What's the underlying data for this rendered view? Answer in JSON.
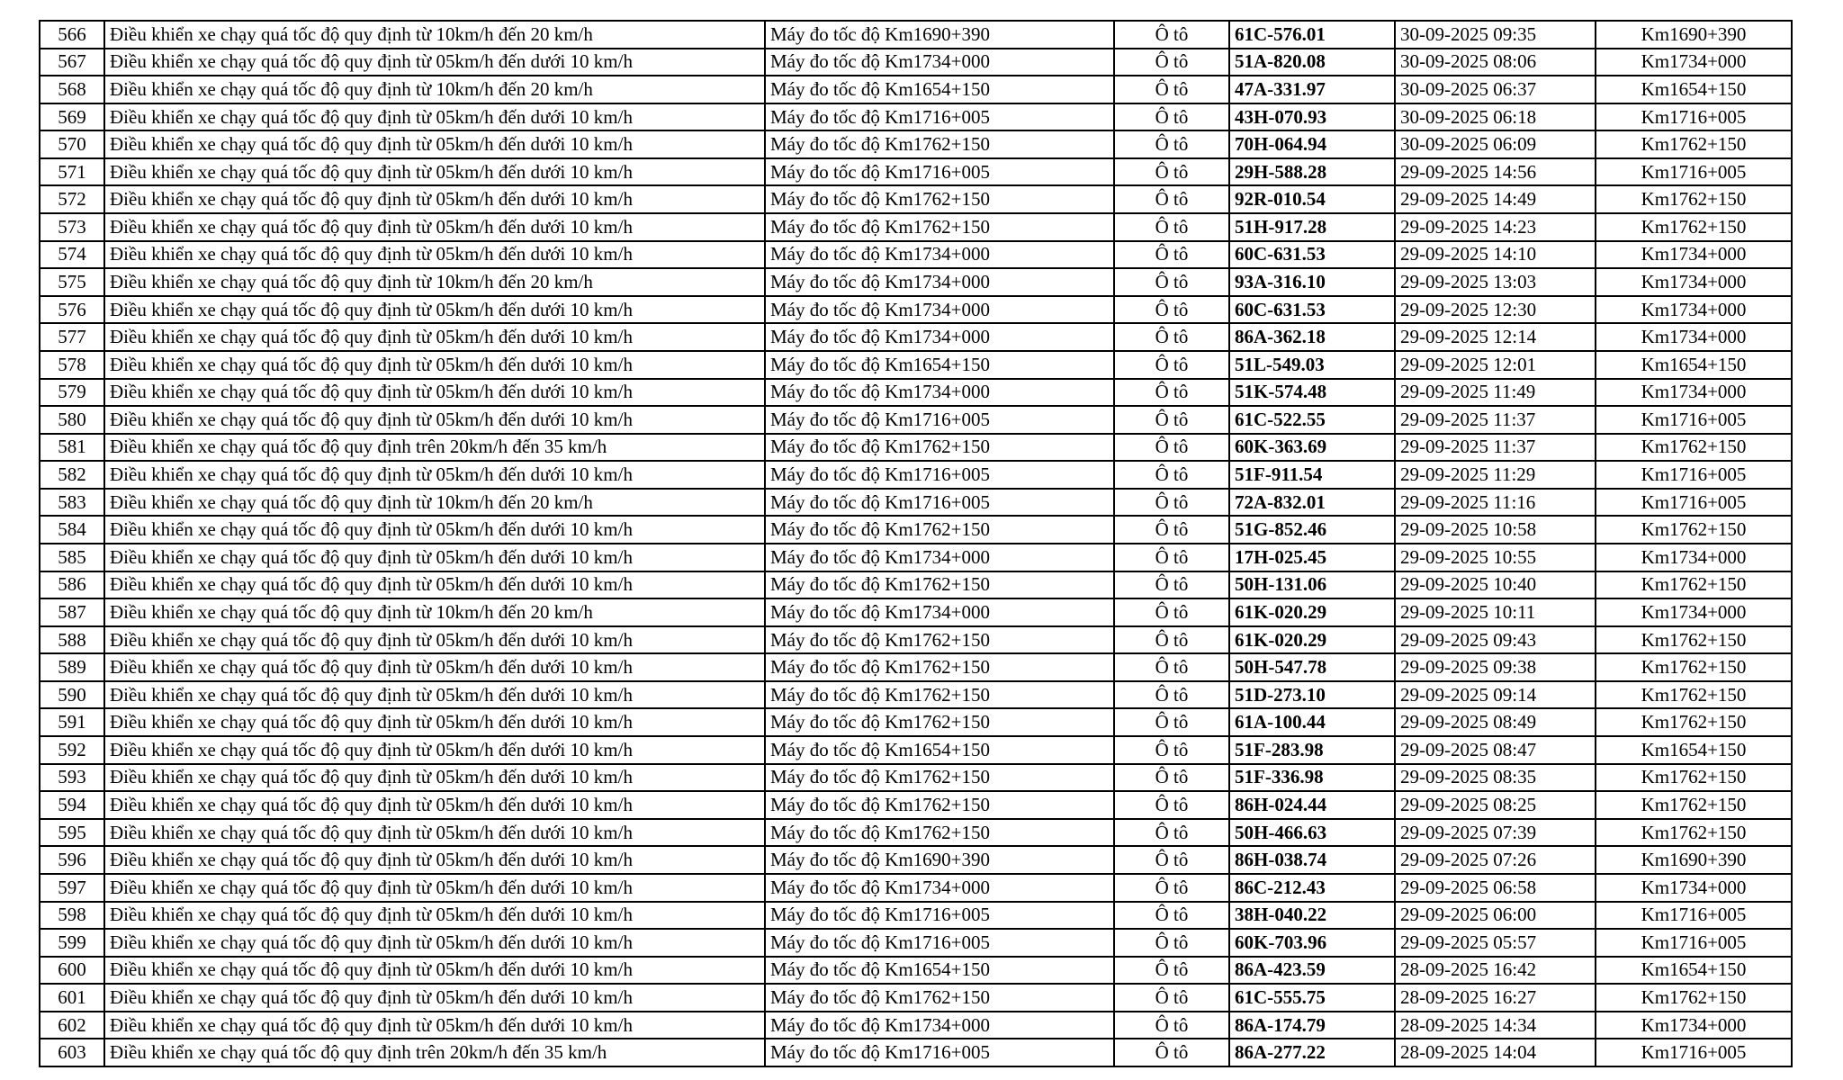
{
  "page": {
    "background_color": "#ffffff",
    "text_color": "#000000",
    "border_color": "#000000"
  },
  "table": {
    "column_keys": [
      "stt",
      "violation",
      "device",
      "vehicle",
      "plate",
      "datetime",
      "location"
    ],
    "rows": [
      {
        "stt": "566",
        "violation": "Điều khiển xe chạy quá tốc độ quy định từ 10km/h đến 20 km/h",
        "device": "Máy đo tốc độ Km1690+390",
        "vehicle": "Ô tô",
        "plate": "61C-576.01",
        "datetime": "30-09-2025 09:35",
        "location": "Km1690+390"
      },
      {
        "stt": "567",
        "violation": "Điều khiển xe chạy quá tốc độ quy định từ 05km/h đến dưới 10 km/h",
        "device": "Máy đo tốc độ Km1734+000",
        "vehicle": "Ô tô",
        "plate": "51A-820.08",
        "datetime": "30-09-2025 08:06",
        "location": "Km1734+000"
      },
      {
        "stt": "568",
        "violation": "Điều khiển xe chạy quá tốc độ quy định từ 10km/h đến 20 km/h",
        "device": "Máy đo tốc độ Km1654+150",
        "vehicle": "Ô tô",
        "plate": "47A-331.97",
        "datetime": "30-09-2025 06:37",
        "location": "Km1654+150"
      },
      {
        "stt": "569",
        "violation": "Điều khiển xe chạy quá tốc độ quy định từ 05km/h đến dưới 10 km/h",
        "device": "Máy đo tốc độ Km1716+005",
        "vehicle": "Ô tô",
        "plate": "43H-070.93",
        "datetime": "30-09-2025 06:18",
        "location": "Km1716+005"
      },
      {
        "stt": "570",
        "violation": "Điều khiển xe chạy quá tốc độ quy định từ 05km/h đến dưới 10 km/h",
        "device": "Máy đo tốc độ Km1762+150",
        "vehicle": "Ô tô",
        "plate": "70H-064.94",
        "datetime": "30-09-2025 06:09",
        "location": "Km1762+150"
      },
      {
        "stt": "571",
        "violation": "Điều khiển xe chạy quá tốc độ quy định từ 05km/h đến dưới 10 km/h",
        "device": "Máy đo tốc độ Km1716+005",
        "vehicle": "Ô tô",
        "plate": "29H-588.28",
        "datetime": "29-09-2025 14:56",
        "location": "Km1716+005"
      },
      {
        "stt": "572",
        "violation": "Điều khiển xe chạy quá tốc độ quy định từ 05km/h đến dưới 10 km/h",
        "device": "Máy đo tốc độ Km1762+150",
        "vehicle": "Ô tô",
        "plate": "92R-010.54",
        "datetime": "29-09-2025 14:49",
        "location": "Km1762+150"
      },
      {
        "stt": "573",
        "violation": "Điều khiển xe chạy quá tốc độ quy định từ 05km/h đến dưới 10 km/h",
        "device": "Máy đo tốc độ Km1762+150",
        "vehicle": "Ô tô",
        "plate": "51H-917.28",
        "datetime": "29-09-2025 14:23",
        "location": "Km1762+150"
      },
      {
        "stt": "574",
        "violation": "Điều khiển xe chạy quá tốc độ quy định từ 05km/h đến dưới 10 km/h",
        "device": "Máy đo tốc độ Km1734+000",
        "vehicle": "Ô tô",
        "plate": "60C-631.53",
        "datetime": "29-09-2025 14:10",
        "location": "Km1734+000"
      },
      {
        "stt": "575",
        "violation": "Điều khiển xe chạy quá tốc độ quy định từ 10km/h đến 20 km/h",
        "device": "Máy đo tốc độ Km1734+000",
        "vehicle": "Ô tô",
        "plate": "93A-316.10",
        "datetime": "29-09-2025 13:03",
        "location": "Km1734+000"
      },
      {
        "stt": "576",
        "violation": "Điều khiển xe chạy quá tốc độ quy định từ 05km/h đến dưới 10 km/h",
        "device": "Máy đo tốc độ Km1734+000",
        "vehicle": "Ô tô",
        "plate": "60C-631.53",
        "datetime": "29-09-2025 12:30",
        "location": "Km1734+000"
      },
      {
        "stt": "577",
        "violation": "Điều khiển xe chạy quá tốc độ quy định từ 05km/h đến dưới 10 km/h",
        "device": "Máy đo tốc độ Km1734+000",
        "vehicle": "Ô tô",
        "plate": "86A-362.18",
        "datetime": "29-09-2025 12:14",
        "location": "Km1734+000"
      },
      {
        "stt": "578",
        "violation": "Điều khiển xe chạy quá tốc độ quy định từ 05km/h đến dưới 10 km/h",
        "device": "Máy đo tốc độ Km1654+150",
        "vehicle": "Ô tô",
        "plate": "51L-549.03",
        "datetime": "29-09-2025 12:01",
        "location": "Km1654+150"
      },
      {
        "stt": "579",
        "violation": "Điều khiển xe chạy quá tốc độ quy định từ 05km/h đến dưới 10 km/h",
        "device": "Máy đo tốc độ Km1734+000",
        "vehicle": "Ô tô",
        "plate": "51K-574.48",
        "datetime": "29-09-2025 11:49",
        "location": "Km1734+000"
      },
      {
        "stt": "580",
        "violation": "Điều khiển xe chạy quá tốc độ quy định từ 05km/h đến dưới 10 km/h",
        "device": "Máy đo tốc độ Km1716+005",
        "vehicle": "Ô tô",
        "plate": "61C-522.55",
        "datetime": "29-09-2025 11:37",
        "location": "Km1716+005"
      },
      {
        "stt": "581",
        "violation": "Điều khiển xe chạy quá tốc độ quy định trên 20km/h đến 35 km/h",
        "device": "Máy đo tốc độ Km1762+150",
        "vehicle": "Ô tô",
        "plate": "60K-363.69",
        "datetime": "29-09-2025 11:37",
        "location": "Km1762+150"
      },
      {
        "stt": "582",
        "violation": "Điều khiển xe chạy quá tốc độ quy định từ 05km/h đến dưới 10 km/h",
        "device": "Máy đo tốc độ Km1716+005",
        "vehicle": "Ô tô",
        "plate": "51F-911.54",
        "datetime": "29-09-2025 11:29",
        "location": "Km1716+005"
      },
      {
        "stt": "583",
        "violation": "Điều khiển xe chạy quá tốc độ quy định từ 10km/h đến 20 km/h",
        "device": "Máy đo tốc độ Km1716+005",
        "vehicle": "Ô tô",
        "plate": "72A-832.01",
        "datetime": "29-09-2025 11:16",
        "location": "Km1716+005"
      },
      {
        "stt": "584",
        "violation": "Điều khiển xe chạy quá tốc độ quy định từ 05km/h đến dưới 10 km/h",
        "device": "Máy đo tốc độ Km1762+150",
        "vehicle": "Ô tô",
        "plate": "51G-852.46",
        "datetime": "29-09-2025 10:58",
        "location": "Km1762+150"
      },
      {
        "stt": "585",
        "violation": "Điều khiển xe chạy quá tốc độ quy định từ 05km/h đến dưới 10 km/h",
        "device": "Máy đo tốc độ Km1734+000",
        "vehicle": "Ô tô",
        "plate": "17H-025.45",
        "datetime": "29-09-2025 10:55",
        "location": "Km1734+000"
      },
      {
        "stt": "586",
        "violation": "Điều khiển xe chạy quá tốc độ quy định từ 05km/h đến dưới 10 km/h",
        "device": "Máy đo tốc độ Km1762+150",
        "vehicle": "Ô tô",
        "plate": "50H-131.06",
        "datetime": "29-09-2025 10:40",
        "location": "Km1762+150"
      },
      {
        "stt": "587",
        "violation": "Điều khiển xe chạy quá tốc độ quy định từ 10km/h đến 20 km/h",
        "device": "Máy đo tốc độ Km1734+000",
        "vehicle": "Ô tô",
        "plate": "61K-020.29",
        "datetime": "29-09-2025 10:11",
        "location": "Km1734+000"
      },
      {
        "stt": "588",
        "violation": "Điều khiển xe chạy quá tốc độ quy định từ 05km/h đến dưới 10 km/h",
        "device": "Máy đo tốc độ Km1762+150",
        "vehicle": "Ô tô",
        "plate": "61K-020.29",
        "datetime": "29-09-2025 09:43",
        "location": "Km1762+150"
      },
      {
        "stt": "589",
        "violation": "Điều khiển xe chạy quá tốc độ quy định từ 05km/h đến dưới 10 km/h",
        "device": "Máy đo tốc độ Km1762+150",
        "vehicle": "Ô tô",
        "plate": "50H-547.78",
        "datetime": "29-09-2025 09:38",
        "location": "Km1762+150"
      },
      {
        "stt": "590",
        "violation": "Điều khiển xe chạy quá tốc độ quy định từ 05km/h đến dưới 10 km/h",
        "device": "Máy đo tốc độ Km1762+150",
        "vehicle": "Ô tô",
        "plate": "51D-273.10",
        "datetime": "29-09-2025 09:14",
        "location": "Km1762+150"
      },
      {
        "stt": "591",
        "violation": "Điều khiển xe chạy quá tốc độ quy định từ 05km/h đến dưới 10 km/h",
        "device": "Máy đo tốc độ Km1762+150",
        "vehicle": "Ô tô",
        "plate": "61A-100.44",
        "datetime": "29-09-2025 08:49",
        "location": "Km1762+150"
      },
      {
        "stt": "592",
        "violation": "Điều khiển xe chạy quá tốc độ quy định từ 05km/h đến dưới 10 km/h",
        "device": "Máy đo tốc độ Km1654+150",
        "vehicle": "Ô tô",
        "plate": "51F-283.98",
        "datetime": "29-09-2025 08:47",
        "location": "Km1654+150"
      },
      {
        "stt": "593",
        "violation": "Điều khiển xe chạy quá tốc độ quy định từ 05km/h đến dưới 10 km/h",
        "device": "Máy đo tốc độ Km1762+150",
        "vehicle": "Ô tô",
        "plate": "51F-336.98",
        "datetime": "29-09-2025 08:35",
        "location": "Km1762+150"
      },
      {
        "stt": "594",
        "violation": "Điều khiển xe chạy quá tốc độ quy định từ 05km/h đến dưới 10 km/h",
        "device": "Máy đo tốc độ Km1762+150",
        "vehicle": "Ô tô",
        "plate": "86H-024.44",
        "datetime": "29-09-2025 08:25",
        "location": "Km1762+150"
      },
      {
        "stt": "595",
        "violation": "Điều khiển xe chạy quá tốc độ quy định từ 05km/h đến dưới 10 km/h",
        "device": "Máy đo tốc độ Km1762+150",
        "vehicle": "Ô tô",
        "plate": "50H-466.63",
        "datetime": "29-09-2025 07:39",
        "location": "Km1762+150"
      },
      {
        "stt": "596",
        "violation": "Điều khiển xe chạy quá tốc độ quy định từ 05km/h đến dưới 10 km/h",
        "device": "Máy đo tốc độ Km1690+390",
        "vehicle": "Ô tô",
        "plate": "86H-038.74",
        "datetime": "29-09-2025 07:26",
        "location": "Km1690+390"
      },
      {
        "stt": "597",
        "violation": "Điều khiển xe chạy quá tốc độ quy định từ 05km/h đến dưới 10 km/h",
        "device": "Máy đo tốc độ Km1734+000",
        "vehicle": "Ô tô",
        "plate": "86C-212.43",
        "datetime": "29-09-2025 06:58",
        "location": "Km1734+000"
      },
      {
        "stt": "598",
        "violation": "Điều khiển xe chạy quá tốc độ quy định từ 05km/h đến dưới 10 km/h",
        "device": "Máy đo tốc độ Km1716+005",
        "vehicle": "Ô tô",
        "plate": "38H-040.22",
        "datetime": "29-09-2025 06:00",
        "location": "Km1716+005"
      },
      {
        "stt": "599",
        "violation": "Điều khiển xe chạy quá tốc độ quy định từ 05km/h đến dưới 10 km/h",
        "device": "Máy đo tốc độ Km1716+005",
        "vehicle": "Ô tô",
        "plate": "60K-703.96",
        "datetime": "29-09-2025 05:57",
        "location": "Km1716+005"
      },
      {
        "stt": "600",
        "violation": "Điều khiển xe chạy quá tốc độ quy định từ 05km/h đến dưới 10 km/h",
        "device": "Máy đo tốc độ Km1654+150",
        "vehicle": "Ô tô",
        "plate": "86A-423.59",
        "datetime": "28-09-2025 16:42",
        "location": "Km1654+150"
      },
      {
        "stt": "601",
        "violation": "Điều khiển xe chạy quá tốc độ quy định từ 05km/h đến dưới 10 km/h",
        "device": "Máy đo tốc độ Km1762+150",
        "vehicle": "Ô tô",
        "plate": "61C-555.75",
        "datetime": "28-09-2025 16:27",
        "location": "Km1762+150"
      },
      {
        "stt": "602",
        "violation": "Điều khiển xe chạy quá tốc độ quy định từ 05km/h đến dưới 10 km/h",
        "device": "Máy đo tốc độ Km1734+000",
        "vehicle": "Ô tô",
        "plate": "86A-174.79",
        "datetime": "28-09-2025 14:34",
        "location": "Km1734+000"
      },
      {
        "stt": "603",
        "violation": "Điều khiển xe chạy quá tốc độ quy định trên 20km/h đến 35 km/h",
        "device": "Máy đo tốc độ Km1716+005",
        "vehicle": "Ô tô",
        "plate": "86A-277.22",
        "datetime": "28-09-2025 14:04",
        "location": "Km1716+005"
      }
    ]
  }
}
